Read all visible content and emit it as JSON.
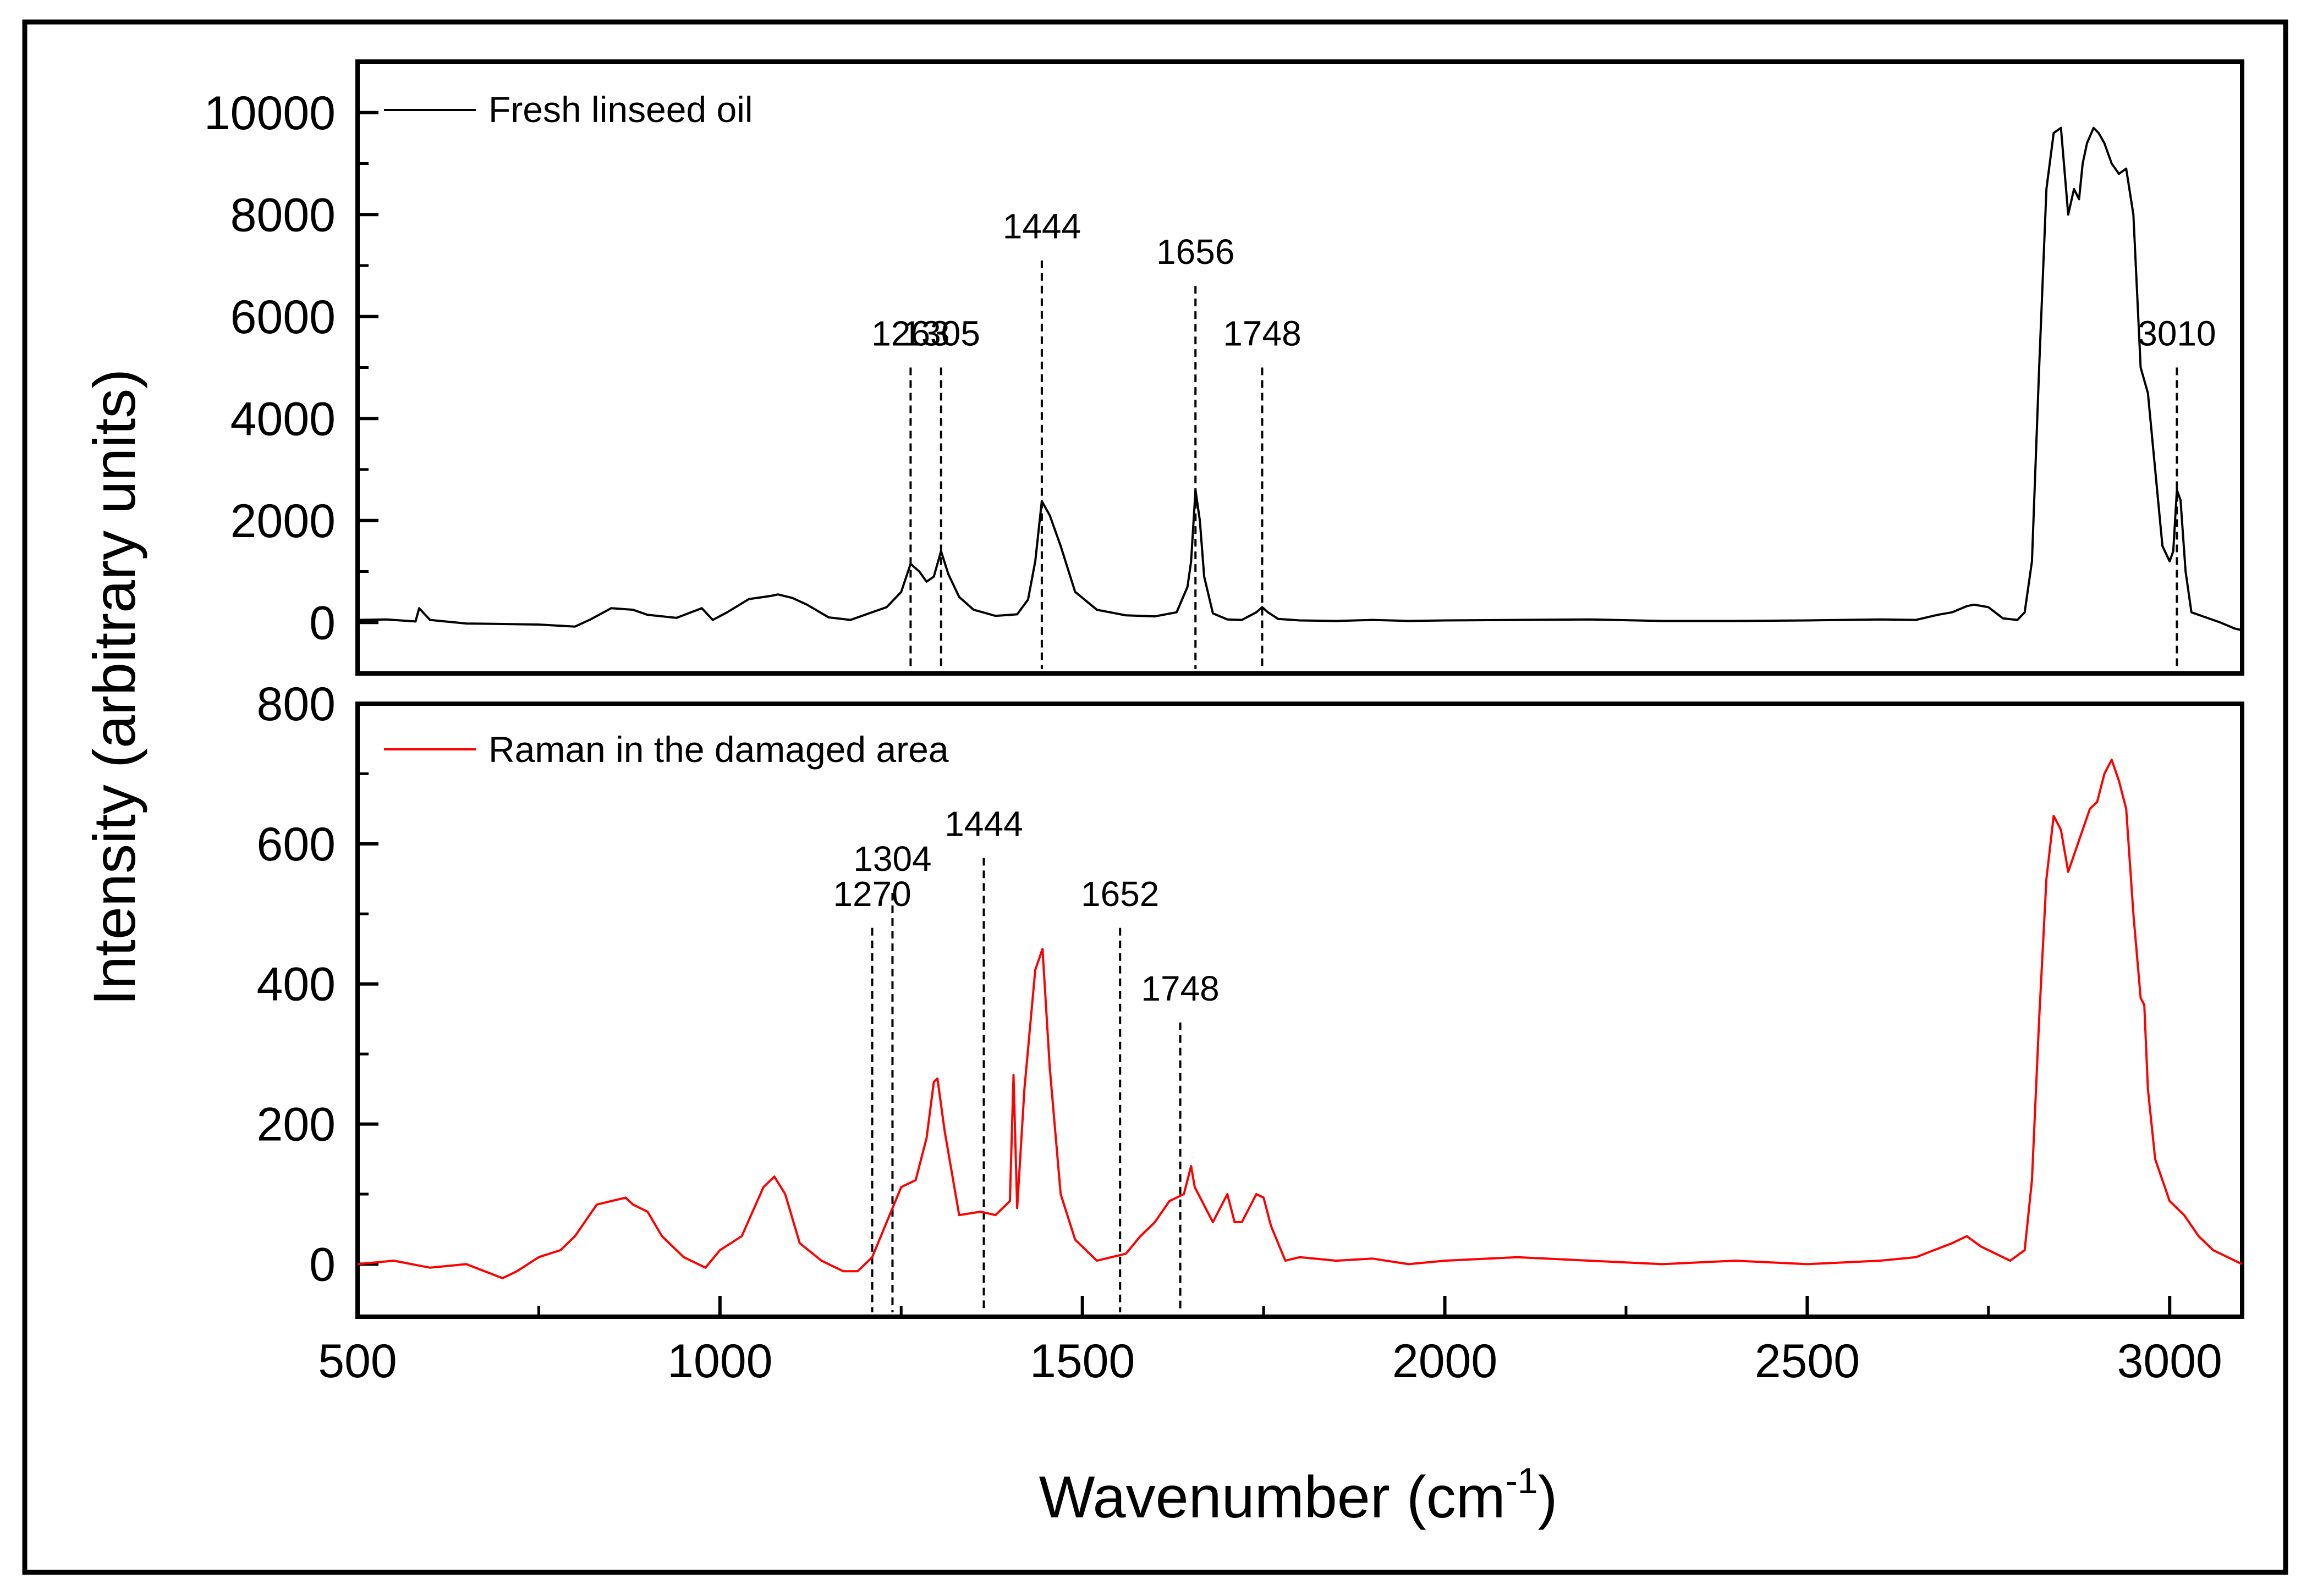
{
  "chart_data": [
    {
      "type": "line",
      "panel": "top",
      "series": [
        {
          "name": "Fresh linseed oil",
          "color": "#000000",
          "x": [
            500,
            540,
            580,
            585,
            600,
            650,
            700,
            750,
            800,
            820,
            850,
            880,
            900,
            940,
            960,
            975,
            990,
            1010,
            1040,
            1070,
            1080,
            1100,
            1120,
            1150,
            1180,
            1200,
            1230,
            1250,
            1263,
            1275,
            1285,
            1295,
            1305,
            1315,
            1330,
            1350,
            1380,
            1410,
            1425,
            1435,
            1444,
            1455,
            1470,
            1490,
            1520,
            1560,
            1600,
            1630,
            1645,
            1650,
            1656,
            1662,
            1668,
            1680,
            1700,
            1720,
            1740,
            1748,
            1756,
            1770,
            1800,
            1850,
            1900,
            1950,
            2000,
            2100,
            2200,
            2300,
            2400,
            2500,
            2600,
            2650,
            2680,
            2700,
            2720,
            2730,
            2750,
            2770,
            2790,
            2800,
            2810,
            2820,
            2830,
            2840,
            2850,
            2860,
            2868,
            2875,
            2880,
            2886,
            2895,
            2902,
            2910,
            2920,
            2930,
            2940,
            2950,
            2960,
            2970,
            2980,
            2990,
            3000,
            3005,
            3010,
            3015,
            3022,
            3030,
            3050,
            3070,
            3090,
            3100
          ],
          "y": [
            50,
            60,
            20,
            280,
            50,
            -20,
            -30,
            -40,
            -80,
            50,
            280,
            250,
            150,
            90,
            200,
            280,
            50,
            200,
            460,
            520,
            550,
            480,
            350,
            100,
            50,
            150,
            300,
            600,
            1150,
            1000,
            800,
            900,
            1400,
            950,
            500,
            250,
            130,
            160,
            450,
            1200,
            2380,
            2100,
            1500,
            600,
            250,
            140,
            120,
            200,
            700,
            1200,
            2600,
            2000,
            900,
            180,
            60,
            50,
            200,
            300,
            200,
            70,
            40,
            30,
            50,
            30,
            40,
            50,
            60,
            30,
            30,
            40,
            60,
            50,
            150,
            200,
            320,
            350,
            300,
            80,
            50,
            200,
            1200,
            5000,
            8500,
            9600,
            9700,
            8000,
            8500,
            8300,
            9000,
            9400,
            9700,
            9600,
            9400,
            9000,
            8800,
            8900,
            8000,
            5000,
            4500,
            3000,
            1500,
            1200,
            1400,
            2600,
            2400,
            1000,
            200,
            100,
            0,
            -120,
            -150
          ]
        }
      ],
      "legend": "Fresh linseed oil",
      "ylabel": "Intensity (arbitrary units)",
      "ylim": [
        -1000,
        11000
      ],
      "yticks": [
        0,
        2000,
        4000,
        6000,
        8000,
        10000
      ],
      "ytick_labels": [
        "0",
        "2000",
        "4000",
        "6000",
        "8000",
        "10000"
      ],
      "annotations": [
        {
          "x": 1263,
          "label": "1263",
          "top": 5000
        },
        {
          "x": 1305,
          "label": "1305",
          "top": 5000
        },
        {
          "x": 1444,
          "label": "1444",
          "top": 7100
        },
        {
          "x": 1656,
          "label": "1656",
          "top": 6600
        },
        {
          "x": 1748,
          "label": "1748",
          "top": 5000
        },
        {
          "x": 3010,
          "label": "3010",
          "top": 5000
        }
      ]
    },
    {
      "type": "line",
      "panel": "bottom",
      "series": [
        {
          "name": "Raman in the damaged area",
          "color": "#ff0000",
          "x": [
            500,
            550,
            600,
            650,
            700,
            720,
            750,
            780,
            800,
            830,
            850,
            870,
            880,
            900,
            920,
            950,
            980,
            1000,
            1030,
            1060,
            1075,
            1090,
            1110,
            1140,
            1170,
            1190,
            1210,
            1230,
            1250,
            1270,
            1285,
            1295,
            1300,
            1310,
            1330,
            1360,
            1380,
            1400,
            1405,
            1410,
            1420,
            1435,
            1445,
            1455,
            1470,
            1490,
            1520,
            1560,
            1580,
            1600,
            1620,
            1640,
            1650,
            1655,
            1665,
            1680,
            1700,
            1710,
            1720,
            1740,
            1750,
            1760,
            1780,
            1800,
            1850,
            1900,
            1950,
            2000,
            2100,
            2200,
            2300,
            2400,
            2500,
            2600,
            2650,
            2700,
            2720,
            2740,
            2760,
            2780,
            2800,
            2810,
            2820,
            2830,
            2840,
            2850,
            2860,
            2870,
            2880,
            2890,
            2900,
            2910,
            2920,
            2930,
            2940,
            2950,
            2960,
            2965,
            2970,
            2980,
            3000,
            3020,
            3040,
            3060,
            3080,
            3100
          ],
          "y": [
            0,
            5,
            -5,
            0,
            -20,
            -10,
            10,
            20,
            40,
            85,
            90,
            95,
            85,
            75,
            40,
            10,
            -5,
            20,
            40,
            110,
            125,
            100,
            30,
            5,
            -10,
            -10,
            10,
            60,
            110,
            120,
            180,
            260,
            265,
            190,
            70,
            75,
            70,
            90,
            270,
            80,
            250,
            420,
            450,
            280,
            100,
            35,
            5,
            15,
            40,
            60,
            90,
            100,
            140,
            110,
            90,
            60,
            100,
            60,
            60,
            100,
            95,
            55,
            5,
            10,
            5,
            8,
            0,
            5,
            10,
            5,
            0,
            5,
            0,
            5,
            10,
            30,
            40,
            25,
            15,
            5,
            20,
            120,
            350,
            550,
            640,
            620,
            560,
            590,
            620,
            650,
            660,
            700,
            720,
            690,
            650,
            500,
            380,
            370,
            250,
            150,
            90,
            70,
            40,
            20,
            10,
            0
          ]
        }
      ],
      "legend": "Raman in the damaged area",
      "xlabel_main": "Wavenumber (cm",
      "xlabel_sup": "-1",
      "xlabel_end": ")",
      "xlim": [
        500,
        3100
      ],
      "xticks": [
        500,
        1000,
        1500,
        2000,
        2500,
        3000
      ],
      "xtick_labels": [
        "500",
        "1000",
        "1500",
        "2000",
        "2500",
        "3000"
      ],
      "ylim": [
        -75,
        800
      ],
      "yticks": [
        0,
        200,
        400,
        600,
        800
      ],
      "ytick_labels": [
        "0",
        "200",
        "400",
        "600",
        "800"
      ],
      "annotations": [
        {
          "x": 1210,
          "label": "1270",
          "top": 480
        },
        {
          "x": 1238,
          "label": "1304",
          "top": 530
        },
        {
          "x": 1364,
          "label": "1444",
          "top": 580
        },
        {
          "x": 1552,
          "label": "1652",
          "top": 480
        },
        {
          "x": 1635,
          "label": "1748",
          "top": 345
        }
      ]
    }
  ]
}
